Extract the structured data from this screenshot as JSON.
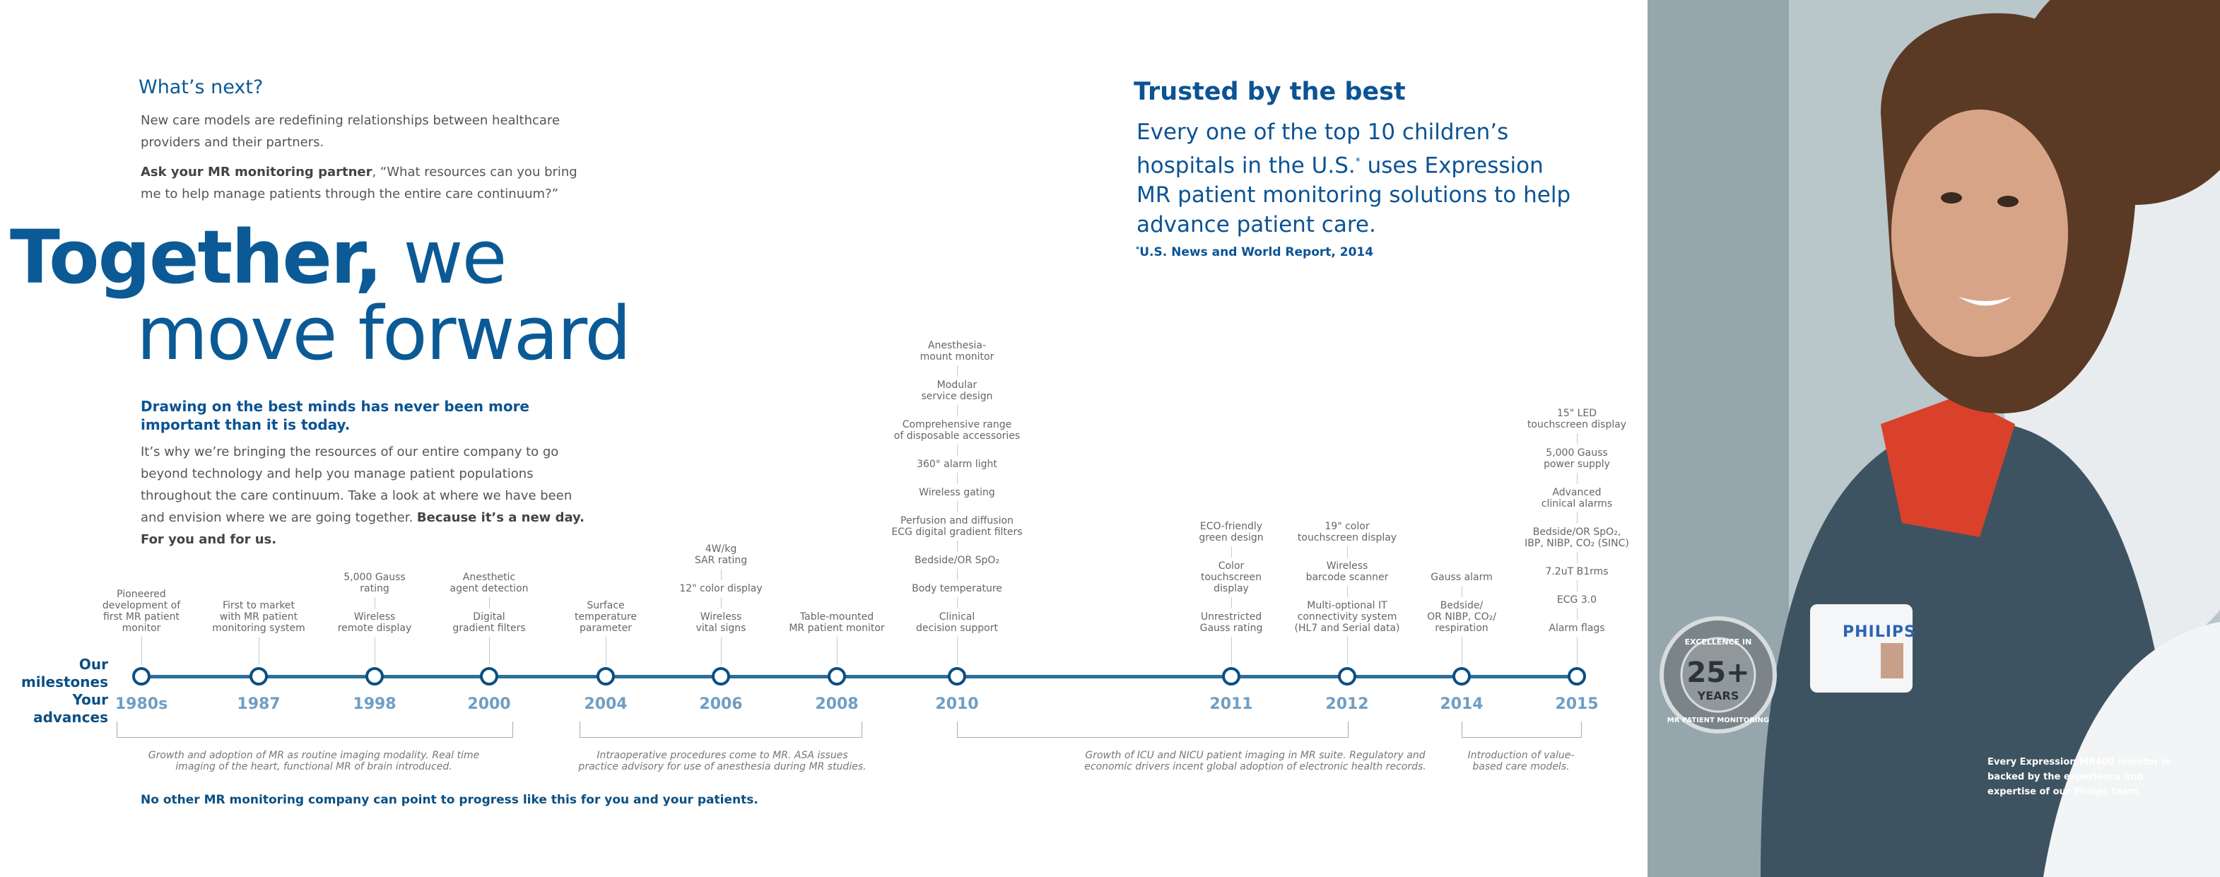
{
  "whats_next": {
    "title": "What’s next?",
    "p1": "New care models are redefining relationships between healthcare providers and their partners.",
    "p2_bold": "Ask your MR monitoring partner",
    "p2_rest": ", “What resources can you bring me to help manage patients through the entire care continuum?”"
  },
  "headline": {
    "bold": "Together,",
    "light1": " we",
    "line2": "move forward"
  },
  "drawing": {
    "title": "Drawing on the best minds has never been more important than it is today.",
    "body": "It’s why we’re bringing the resources of our entire company to go beyond technology and help you manage patient populations throughout the care continuum. Take a look at where we have been and envision where we are going together. ",
    "body_bold": "Because it’s a new day. For you and for us."
  },
  "trusted": {
    "title": "Trusted by the best",
    "body_a": "Every one of the top 10 children’s hospitals in the U.S.",
    "body_sup": "*",
    "body_b": " uses Expression MR patient monitoring solutions to help advance patient care.",
    "source_sup": "*",
    "source": "U.S. News and World Report, 2014"
  },
  "timeline": {
    "label_line1": "Our milestones",
    "label_line2": "Your advances",
    "years": [
      "1980s",
      "1987",
      "1998",
      "2000",
      "2004",
      "2006",
      "2008",
      "2010",
      "2011",
      "2012",
      "2014",
      "2015"
    ],
    "milestones": [
      [
        "Pioneered\ndevelopment of\nfirst MR patient\nmonitor"
      ],
      [
        "First to market\nwith MR patient\nmonitoring system"
      ],
      [
        "5,000 Gauss\nrating",
        "Wireless\nremote display"
      ],
      [
        "Anesthetic\nagent detection",
        "Digital\ngradient filters"
      ],
      [
        "Surface\ntemperature\nparameter"
      ],
      [
        "4W/kg\nSAR rating",
        "12\" color display",
        "Wireless\nvital signs"
      ],
      [
        "Table-mounted\nMR patient monitor"
      ],
      [
        "Anesthesia-\nmount monitor",
        "Modular\nservice design",
        "Comprehensive range\nof disposable accessories",
        "360° alarm light",
        "Wireless gating",
        "Perfusion and diffusion\nECG digital gradient filters",
        "Bedside/OR SpO₂",
        "Body temperature",
        "Clinical\ndecision support"
      ],
      [
        "ECO-friendly\ngreen design",
        "Color\ntouchscreen\ndisplay",
        "Unrestricted\nGauss rating"
      ],
      [
        "19\" color\ntouchscreen display",
        "Wireless\nbarcode scanner",
        "Multi-optional IT\nconnectivity system\n(HL7 and Serial data)"
      ],
      [
        "Gauss alarm",
        "Bedside/\nOR NIBP, CO₂/\nrespiration"
      ],
      [
        "15\" LED\ntouchscreen display",
        "5,000 Gauss\npower supply",
        "Advanced\nclinical alarms",
        "Bedside/OR SpO₂,\nIBP, NIBP, CO₂ (SINC)",
        "7.2uT B1rms",
        "ECG 3.0",
        "Alarm flags"
      ]
    ],
    "eras": [
      "Growth and adoption of MR as routine imaging modality. Real time\nimaging of the heart, functional MR of brain introduced.",
      "Intraoperative procedures come to MR. ASA issues\npractice advisory for use of anesthesia during MR studies.",
      "Growth of ICU and NICU patient imaging in MR suite. Regulatory and\neconomic drivers incent global adoption of electronic health records.",
      "Introduction of value-\nbased care models."
    ],
    "footer": "No other MR monitoring company can point to progress like this for you and your patients."
  },
  "photo": {
    "badge_brand": "PHILIPS",
    "seal_number": "25+",
    "seal_years": "YEARS",
    "seal_top": "EXCELLENCE IN",
    "seal_bottom": "MR PATIENT MONITORING",
    "caption": "Every Expression MR400 monitor is backed by the experience and expertise of our Philips team.",
    "colors": {
      "jacket": "#3e5362",
      "scarf": "#d9412a",
      "skin": "#d8a488",
      "hair": "#5a3a25"
    }
  }
}
